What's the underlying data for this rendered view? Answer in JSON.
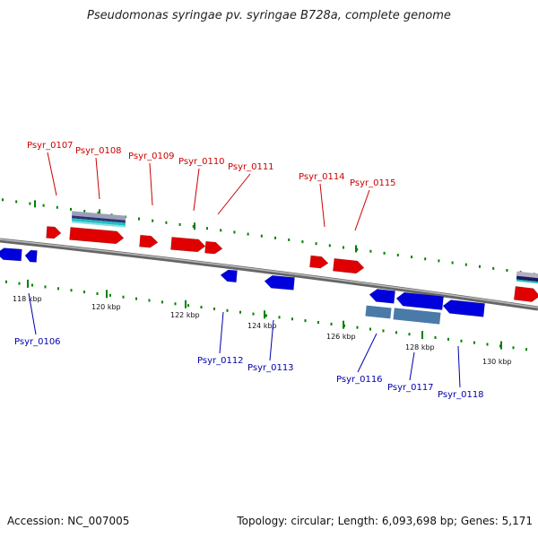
{
  "title": "Pseudomonas syringae pv. syringae B728a, complete genome",
  "footer": {
    "accession": "Accession: NC_007005",
    "topology": "Topology: circular; Length: 6,093,698 bp; Genes: 5,171"
  },
  "colors": {
    "forward_gene": "#e00000",
    "reverse_gene": "#0000dd",
    "forward_label": "#cc0000",
    "reverse_label": "#0000aa",
    "tick": "#008000",
    "backbone": "#888888",
    "rna_teal": "#20c0c0",
    "rna_steel": "#4a7aa8"
  },
  "ticks": {
    "labels": [
      "118 kbp",
      "120 kbp",
      "122 kbp",
      "124 kbp",
      "126 kbp",
      "128 kbp",
      "130 kbp"
    ]
  },
  "genes": {
    "forward": [
      "Psyr_0107",
      "Psyr_0108",
      "Psyr_0109",
      "Psyr_0110",
      "Psyr_0111",
      "Psyr_0114",
      "Psyr_0115"
    ],
    "reverse": [
      "Psyr_0106",
      "Psyr_0112",
      "Psyr_0113",
      "Psyr_0116",
      "Psyr_0117",
      "Psyr_0118"
    ]
  }
}
